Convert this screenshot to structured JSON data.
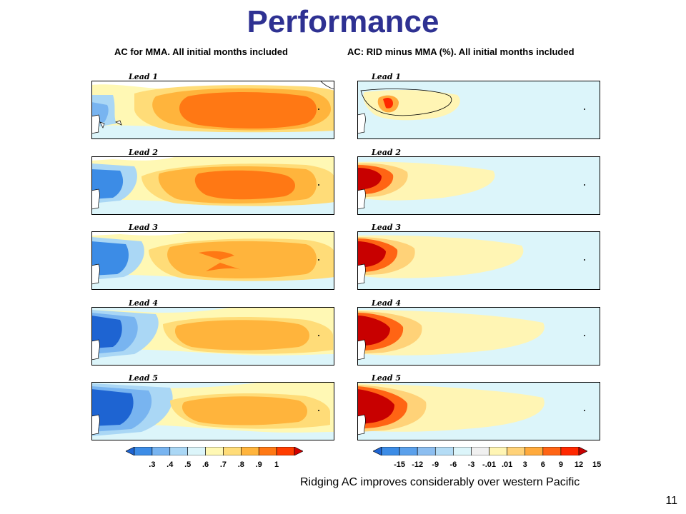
{
  "slide": {
    "title": "Performance",
    "left_heading": "AC for MMA. All initial months included",
    "right_heading": "AC: RID minus MMA (%). All initial months included",
    "caption": "Ridging AC improves considerably over western Pacific",
    "page_number": "11"
  },
  "leads": [
    "Lead 1",
    "Lead 2",
    "Lead 3",
    "Lead 4",
    "Lead 5"
  ],
  "left_colorbar": {
    "ticks": [
      ".3",
      ".4",
      ".5",
      ".6",
      ".7",
      ".8",
      ".9",
      "1"
    ],
    "colors": [
      "#1e64d2",
      "#3c8ce6",
      "#78b4f0",
      "#aad7f5",
      "#dcf5fa",
      "#fff8b4",
      "#ffdc78",
      "#ffb43c",
      "#ff7814",
      "#ff3c00",
      "#d20000"
    ]
  },
  "right_colorbar": {
    "ticks": [
      "-15",
      "-12",
      "-9",
      "-6",
      "-3",
      "-.01",
      ".01",
      "3",
      "6",
      "9",
      "12",
      "15"
    ],
    "colors": [
      "#1e64d2",
      "#3c8ce6",
      "#5aa0eb",
      "#8cbef0",
      "#b4dcf5",
      "#dcf5fa",
      "#f0f0f0",
      "#fff5b4",
      "#ffd278",
      "#ffaa3c",
      "#ff6414",
      "#ff2800",
      "#c80000"
    ]
  }
}
